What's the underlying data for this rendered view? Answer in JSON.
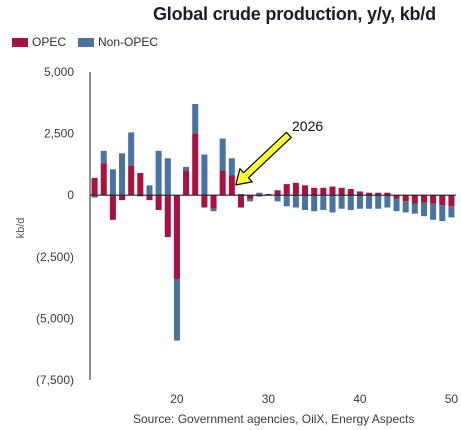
{
  "chart_data": {
    "type": "bar",
    "stacked": true,
    "title": "Global crude production, y/y, kb/d",
    "ylabel": "kb/d",
    "xlabel": "",
    "ylim": [
      -7500,
      5000
    ],
    "xlim": [
      10.5,
      50.5
    ],
    "yticks": [
      5000,
      2500,
      0,
      -2500,
      -5000,
      -7500
    ],
    "ytick_labels": [
      "5,000",
      "2,500",
      "0",
      "(2,500)",
      "(5,000)",
      "(7,500)"
    ],
    "xticks": [
      20,
      30,
      40,
      50
    ],
    "xtick_labels": [
      "20",
      "30",
      "40",
      "50"
    ],
    "grid": false,
    "legend_position": "top-left",
    "colors": {
      "OPEC": "#a8123e",
      "Non-OPEC": "#4a74a0",
      "axis": "#222222",
      "arrow_fill": "#ffff33",
      "arrow_stroke": "#111111"
    },
    "x": [
      11,
      12,
      13,
      14,
      15,
      16,
      17,
      18,
      19,
      20,
      21,
      22,
      23,
      24,
      25,
      26,
      27,
      28,
      29,
      30,
      31,
      32,
      33,
      34,
      35,
      36,
      37,
      38,
      39,
      40,
      41,
      42,
      43,
      44,
      45,
      46,
      47,
      48,
      49,
      50
    ],
    "series": [
      {
        "name": "OPEC",
        "values": [
          700,
          1300,
          -1000,
          -200,
          1200,
          900,
          -200,
          -600,
          -1700,
          -3400,
          1000,
          2500,
          -500,
          -550,
          1000,
          800,
          -500,
          -150,
          -50,
          50,
          200,
          450,
          500,
          400,
          300,
          300,
          350,
          300,
          250,
          150,
          100,
          100,
          100,
          -150,
          -250,
          -350,
          -300,
          -350,
          -400,
          -450
        ]
      },
      {
        "name": "Non-OPEC",
        "values": [
          -100,
          500,
          1050,
          1700,
          1350,
          -50,
          400,
          1800,
          1500,
          -2500,
          150,
          1200,
          1650,
          -100,
          1300,
          700,
          50,
          -100,
          100,
          0,
          -250,
          -450,
          -500,
          -600,
          -650,
          -600,
          -700,
          -550,
          -600,
          -550,
          -550,
          -550,
          -500,
          -500,
          -450,
          -400,
          -550,
          -650,
          -650,
          -450
        ]
      }
    ],
    "annotations": [
      {
        "text": "2026",
        "x": 26
      }
    ],
    "source": "Source: Government agencies, OilX, Energy Aspects"
  },
  "legend": [
    {
      "label": "OPEC"
    },
    {
      "label": "Non-OPEC"
    }
  ]
}
